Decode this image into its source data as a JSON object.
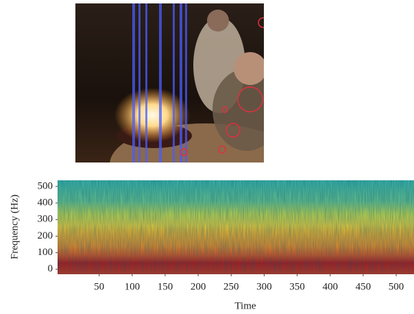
{
  "chart_data": {
    "type": "spectrogram",
    "xlabel": "Time",
    "ylabel": "Frequency (Hz)",
    "xlim": [
      -13,
      527
    ],
    "xticks": [
      50,
      100,
      150,
      200,
      250,
      300,
      350,
      400,
      450,
      500
    ],
    "ylim": [
      -30,
      537
    ],
    "yticks": [
      0,
      100,
      200,
      300,
      400,
      500
    ]
  }
}
